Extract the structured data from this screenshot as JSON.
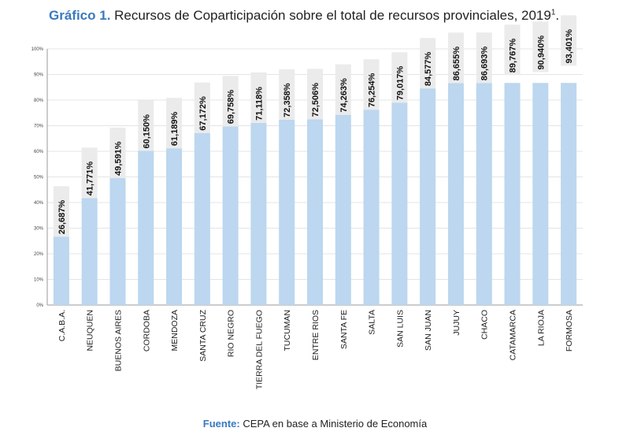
{
  "header": {
    "label": "Gráfico 1.",
    "text": "Recursos de Coparticipación sobre el total de recursos provinciales, 2019",
    "footnote": "1",
    "end": "."
  },
  "footer": {
    "label": "Fuente:",
    "text": "CEPA en base a Ministerio de Economía"
  },
  "colors": {
    "bar": "#bcd7ef",
    "label_bg": "#ebebeb",
    "grid": "#e4e4e4",
    "axis": "#999999",
    "accent": "#3a7abf"
  },
  "chart_data": {
    "type": "bar",
    "title": "Recursos de Coparticipación sobre el total de recursos provinciales, 2019",
    "xlabel": "",
    "ylabel": "",
    "ylim": [
      0,
      100
    ],
    "ytick_values": [
      0,
      10,
      20,
      30,
      40,
      50,
      60,
      70,
      80,
      90,
      100
    ],
    "ytick_labels": [
      "0%",
      "10%",
      "20%",
      "30%",
      "40%",
      "50%",
      "60%",
      "70%",
      "80%",
      "90%",
      "100%"
    ],
    "grid": true,
    "categories": [
      "C.A.B.A.",
      "NEUQUEN",
      "BUENOS AIRES",
      "CORDOBA",
      "MENDOZA",
      "SANTA CRUZ",
      "RIO NEGRO",
      "TIERRA DEL FUEGO",
      "TUCUMAN",
      "ENTRE RIOS",
      "SANTA FE",
      "SALTA",
      "SAN LUIS",
      "SAN JUAN",
      "JUJUY",
      "CHACO",
      "CATAMARCA",
      "LA RIOJA",
      "FORMOSA"
    ],
    "values": [
      26.687,
      41.771,
      49.591,
      60.15,
      61.189,
      67.172,
      69.758,
      71.118,
      72.358,
      72.506,
      74.263,
      76.254,
      79.017,
      84.577,
      86.655,
      86.693,
      89.767,
      90.94,
      93.401
    ],
    "value_labels": [
      "26,687%",
      "41,771%",
      "49,591%",
      "60,150%",
      "61,189%",
      "67,172%",
      "69,758%",
      "71,118%",
      "72,358%",
      "72,506%",
      "74,263%",
      "76,254%",
      "79,017%",
      "84,577%",
      "86,655%",
      "86,693%",
      "89,767%",
      "90,940%",
      "93,401%"
    ],
    "bar_cap": 86.7
  }
}
